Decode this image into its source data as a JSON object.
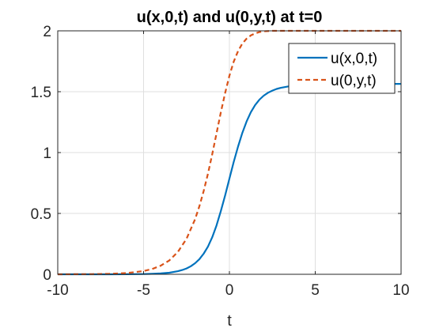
{
  "chart_data": {
    "type": "line",
    "title": "u(x,0,t) and u(0,y,t) at t=0",
    "xlabel": "t",
    "ylabel": "",
    "xlim": [
      -10,
      10
    ],
    "ylim": [
      0,
      2
    ],
    "x_ticks": [
      -10,
      -5,
      0,
      5,
      10
    ],
    "y_ticks": [
      0,
      0.5,
      1,
      1.5,
      2
    ],
    "x_tick_labels": [
      "-10",
      "-5",
      "0",
      "5",
      "10"
    ],
    "y_tick_labels": [
      "0",
      "0.5",
      "1",
      "1.5",
      "2"
    ],
    "grid": true,
    "legend_position": "top-right",
    "series": [
      {
        "name": "u(x,0,t)",
        "color": "#0072BD",
        "style": "solid",
        "x": [
          -10,
          -9,
          -8,
          -7,
          -6,
          -5,
          -4.5,
          -4,
          -3.5,
          -3,
          -2.75,
          -2.5,
          -2.25,
          -2,
          -1.75,
          -1.5,
          -1.25,
          -1,
          -0.75,
          -0.5,
          -0.25,
          0,
          0.25,
          0.5,
          0.75,
          1,
          1.25,
          1.5,
          1.75,
          2,
          2.25,
          2.5,
          2.75,
          3,
          3.5,
          4,
          4.5,
          5,
          6,
          7,
          8,
          9,
          10
        ],
        "y": [
          0,
          0,
          0,
          0.0001,
          0.0005,
          0.0018,
          0.0036,
          0.007,
          0.0133,
          0.0254,
          0.035,
          0.0481,
          0.0665,
          0.0908,
          0.1241,
          0.1688,
          0.2276,
          0.3047,
          0.4014,
          0.5179,
          0.6478,
          0.786,
          0.9218,
          1.0487,
          1.161,
          1.2554,
          1.3315,
          1.3904,
          1.4349,
          1.4675,
          1.4917,
          1.5094,
          1.5225,
          1.5321,
          1.5451,
          1.5528,
          1.5573,
          1.5598,
          1.5626,
          1.5636,
          1.564,
          1.5641,
          1.5642
        ]
      },
      {
        "name": "u(0,y,t)",
        "color": "#D95319",
        "style": "dashed",
        "x": [
          -10,
          -9,
          -8,
          -7,
          -6,
          -5,
          -4.5,
          -4,
          -3.5,
          -3,
          -2.5,
          -2,
          -1.75,
          -1.5,
          -1.25,
          -1,
          -0.75,
          -0.5,
          -0.25,
          0,
          0.25,
          0.5,
          0.75,
          1,
          1.25,
          1.5,
          1.75,
          2,
          2.5,
          3,
          3.5,
          4,
          4.5,
          5,
          6,
          7,
          8,
          9,
          10
        ],
        "y": [
          0.0002,
          0.0006,
          0.0013,
          0.0036,
          0.0098,
          0.0266,
          0.0434,
          0.0707,
          0.1146,
          0.1843,
          0.2915,
          0.4525,
          0.5582,
          0.6823,
          0.8268,
          0.9871,
          1.1573,
          1.3283,
          1.4895,
          1.6312,
          1.7464,
          1.8333,
          1.8946,
          1.9359,
          1.9625,
          1.9793,
          1.9896,
          1.9959,
          2.0019,
          2.004,
          2.0047,
          2.005,
          2.0051,
          2.0051,
          2.0052,
          2.0052,
          2.0052,
          2.0052,
          2.0052
        ]
      }
    ]
  }
}
